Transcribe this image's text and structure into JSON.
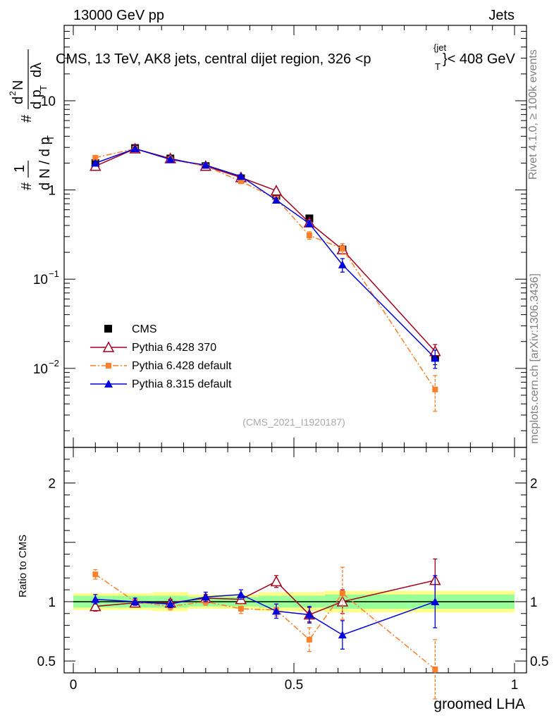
{
  "header": {
    "left": "13000 GeV pp",
    "right": "Jets"
  },
  "plot_title": "CMS, 13 TeV, AK8 jets, central dijet region, 326 <p",
  "plot_title_sup": "{jet",
  "plot_title_sub": "T",
  "plot_title_end": "}< 408 GeV",
  "side_text": {
    "rivet": "Rivet 4.1.0, ≥ 100k events",
    "mcplots": "mcplots.cern.ch [arXiv:1306.3436]"
  },
  "watermark": "(CMS_2021_I1920187)",
  "colors": {
    "cms": "#000000",
    "p6_370": "#a0001e",
    "p6_def": "#ff7f2a",
    "p8": "#0000dd",
    "band_inner": "#99ff99",
    "band_outer": "#ffff88"
  },
  "chart_data": [
    {
      "type": "line",
      "name": "main",
      "yscale": "log",
      "ylabel": "#1/dN/dp_T # d^2N/dp_T dλ",
      "ylabel_parts": {
        "hash1": "#",
        "one": "1",
        "dn_dpt": "d N / d p",
        "dn_dpt_sub": "T",
        "hash2": "#",
        "d2n": "d",
        "d2n_sup": "2",
        "d2n_rest": "N",
        "dpt_dl": "d p",
        "dpt_dl_sub": "T",
        "dl": "dλ"
      },
      "xlim": [
        0,
        1
      ],
      "ylim": [
        0.0013,
        70
      ],
      "yticks": [
        {
          "value": 0.01,
          "base": "10",
          "exp": "−2"
        },
        {
          "value": 0.1,
          "base": "10",
          "exp": "−1"
        },
        {
          "value": 1,
          "base": "1",
          "exp": ""
        },
        {
          "value": 10,
          "base": "10",
          "exp": ""
        }
      ],
      "x": [
        0.05,
        0.14,
        0.22,
        0.3,
        0.38,
        0.46,
        0.535,
        0.61,
        0.82
      ],
      "series": [
        {
          "name": "CMS",
          "marker": "square",
          "color": "#000000",
          "linestyle": "none",
          "values": [
            2.0,
            2.95,
            2.25,
            1.85,
            1.35,
            0.86,
            0.48,
            0.215,
            0.0135
          ],
          "err": [
            0.1,
            0.15,
            0.1,
            0.08,
            0.06,
            0.05,
            0.03,
            0.02,
            0.0025
          ]
        },
        {
          "name": "Pythia 6.428 370",
          "marker": "open-triangle",
          "color": "#a0001e",
          "linestyle": "solid",
          "values": [
            1.85,
            2.9,
            2.25,
            1.85,
            1.38,
            0.98,
            0.43,
            0.215,
            0.0155
          ],
          "err": [
            0.06,
            0.1,
            0.08,
            0.06,
            0.05,
            0.04,
            0.03,
            0.02,
            0.003
          ]
        },
        {
          "name": "Pythia 6.428 default",
          "marker": "filled-square",
          "color": "#ff7f2a",
          "linestyle": "dashdot",
          "values": [
            2.3,
            2.9,
            2.2,
            1.85,
            1.25,
            0.8,
            0.31,
            0.22,
            0.0058
          ],
          "err": [
            0.08,
            0.1,
            0.08,
            0.06,
            0.05,
            0.04,
            0.03,
            0.03,
            0.0025
          ]
        },
        {
          "name": "Pythia 8.315 default",
          "marker": "filled-triangle",
          "color": "#0000dd",
          "linestyle": "solid",
          "values": [
            2.0,
            2.9,
            2.2,
            1.9,
            1.42,
            0.77,
            0.42,
            0.145,
            0.013
          ],
          "err": [
            0.06,
            0.1,
            0.08,
            0.06,
            0.05,
            0.04,
            0.03,
            0.025,
            0.003
          ]
        }
      ],
      "legend_position": "lower-left"
    },
    {
      "type": "line",
      "name": "ratio",
      "ylabel": "Ratio to CMS",
      "xlabel": "groomed LHA",
      "xlim": [
        0,
        1
      ],
      "ylim": [
        0.4,
        2.3
      ],
      "xticks": [
        {
          "value": 0,
          "label": "0"
        },
        {
          "value": 0.5,
          "label": "0.5"
        },
        {
          "value": 1,
          "label": "1"
        }
      ],
      "yticks": [
        {
          "value": 0.5,
          "label": "0.5"
        },
        {
          "value": 1,
          "label": "1"
        },
        {
          "value": 2,
          "label": "2"
        }
      ],
      "bands": [
        {
          "x0": 0.0,
          "x1": 0.18,
          "inner": 0.05,
          "outer": 0.07
        },
        {
          "x0": 0.18,
          "x1": 0.26,
          "inner": 0.05,
          "outer": 0.08
        },
        {
          "x0": 0.26,
          "x1": 0.42,
          "inner": 0.04,
          "outer": 0.06
        },
        {
          "x0": 0.42,
          "x1": 0.57,
          "inner": 0.05,
          "outer": 0.08
        },
        {
          "x0": 0.57,
          "x1": 1.0,
          "inner": 0.06,
          "outer": 0.09
        }
      ],
      "series": [
        {
          "name": "Pythia 6.428 370",
          "values": [
            0.96,
            0.99,
            0.99,
            1.03,
            1.02,
            1.17,
            0.89,
            1.0,
            1.18
          ],
          "err": [
            0.04,
            0.03,
            0.03,
            0.03,
            0.03,
            0.05,
            0.06,
            0.1,
            0.18
          ]
        },
        {
          "name": "Pythia 6.428 default",
          "values": [
            1.23,
            1.0,
            0.96,
            1.0,
            0.94,
            0.93,
            0.68,
            1.07,
            0.43
          ],
          "err": [
            0.04,
            0.03,
            0.03,
            0.03,
            0.04,
            0.05,
            0.1,
            0.22,
            0.25
          ]
        },
        {
          "name": "Pythia 8.315 default",
          "values": [
            1.02,
            1.0,
            0.98,
            1.04,
            1.06,
            0.92,
            0.89,
            0.72,
            1.0
          ],
          "err": [
            0.04,
            0.03,
            0.03,
            0.04,
            0.04,
            0.06,
            0.07,
            0.12,
            0.22
          ]
        }
      ]
    }
  ]
}
